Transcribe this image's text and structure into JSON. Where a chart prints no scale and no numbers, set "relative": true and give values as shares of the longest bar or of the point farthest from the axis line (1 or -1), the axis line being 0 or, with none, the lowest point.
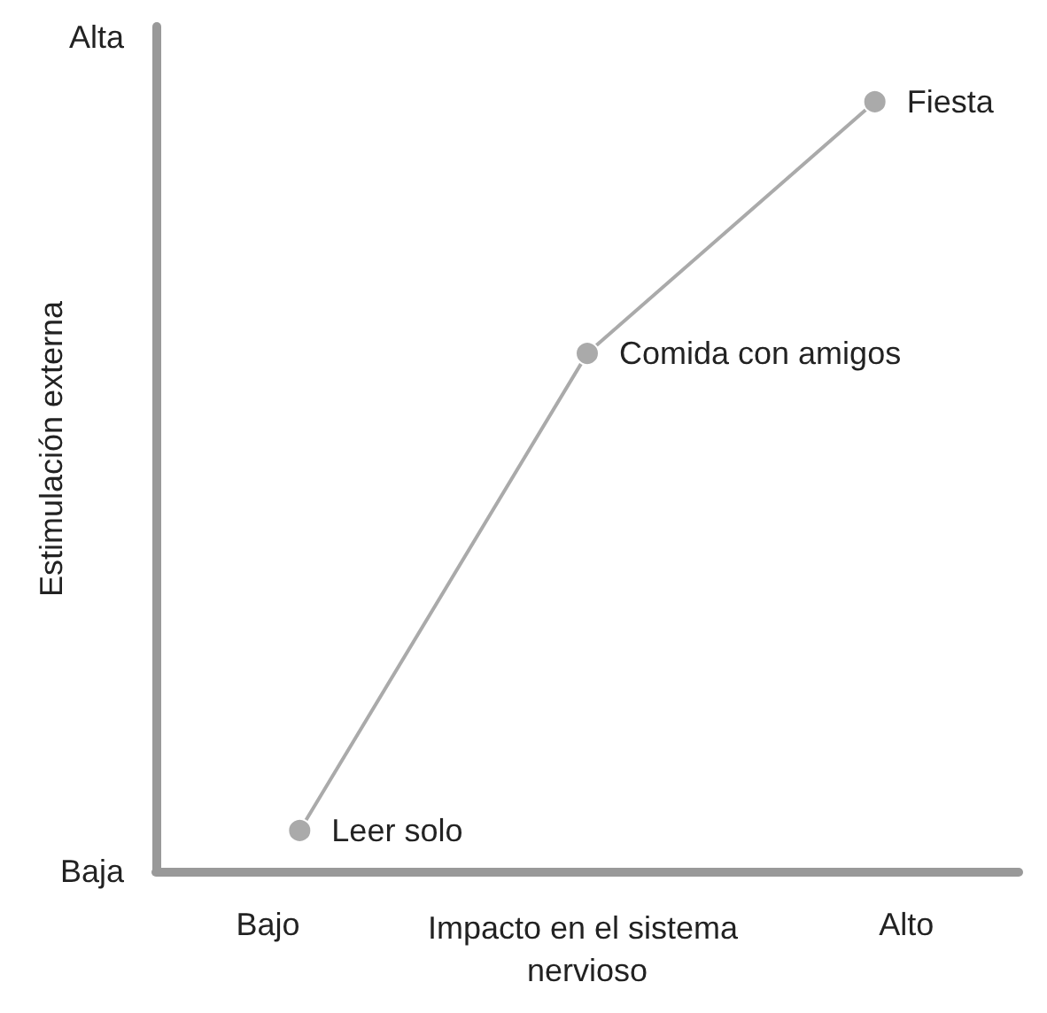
{
  "chart_data": {
    "type": "line",
    "xlabel": "Impacto en el sistema nervioso",
    "ylabel": "Estimulación externa",
    "categories": [
      null,
      null,
      null
    ],
    "series": [
      {
        "color": "#aaaaaa",
        "values": [
          0.053,
          0.673,
          1
        ]
      }
    ],
    "relative": true,
    "marker": "circle",
    "line_style": "solid",
    "grid": false,
    "annotations": [
      "Alta",
      "Baja",
      "Bajo",
      "Alto",
      "Leer solo",
      "Comida con amigos",
      "Fiesta"
    ]
  }
}
